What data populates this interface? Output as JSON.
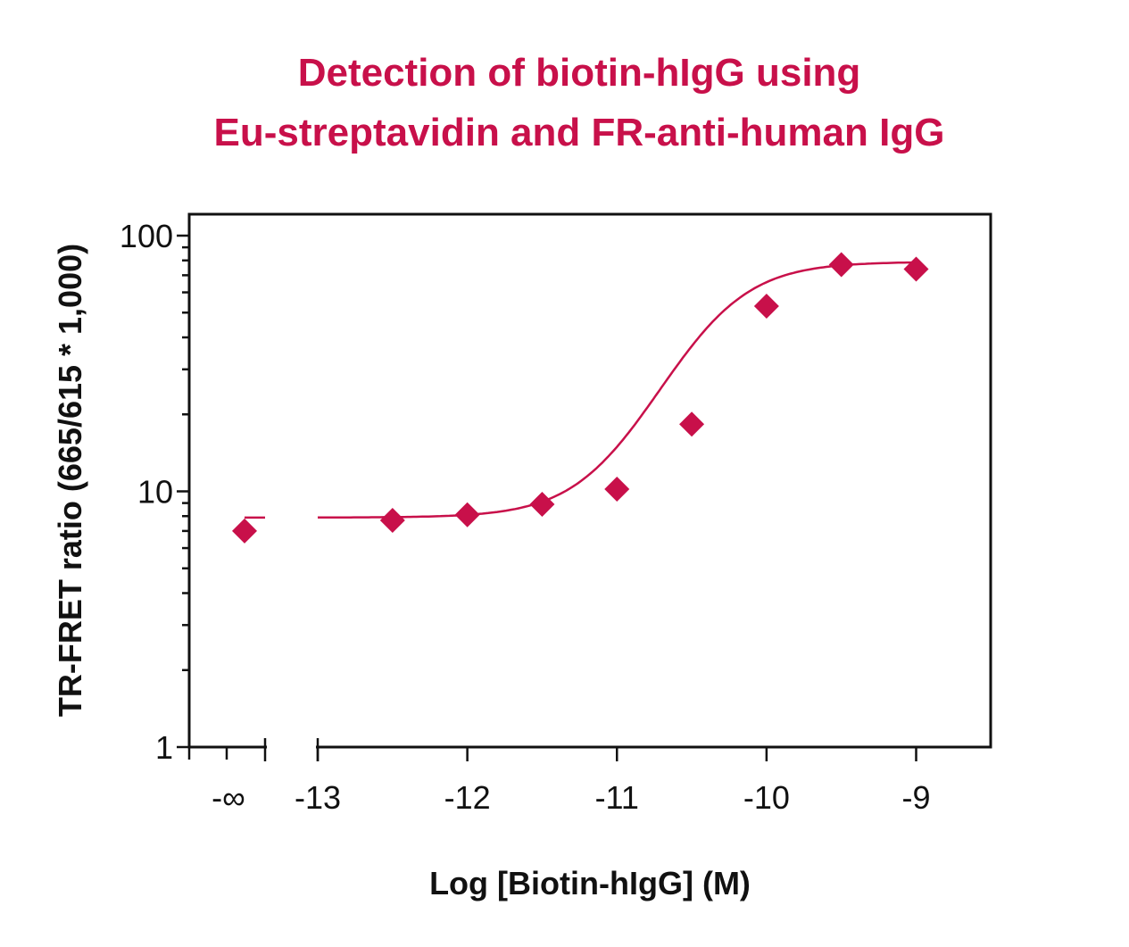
{
  "colors": {
    "accent": "#c8104a",
    "axis": "#111111",
    "background": "#ffffff"
  },
  "chart_data": {
    "type": "scatter",
    "title_lines": [
      "Detection of biotin-hIgG using",
      "Eu-streptavidin and FR-anti-human IgG"
    ],
    "xlabel": "Log [Biotin-hIgG] (M)",
    "ylabel": "TR-FRET ratio (665/615 * 1,000)",
    "y_scale": "log",
    "ylim": [
      1,
      130
    ],
    "xlim": [
      -13,
      -8.5
    ],
    "x_break": true,
    "x_break_label": "-∞",
    "x_tick_labels": [
      "-13",
      "-12",
      "-11",
      "-10",
      "-9"
    ],
    "x_ticks": [
      -13,
      -12,
      -11,
      -10,
      -9
    ],
    "y_tick_labels": [
      "1",
      "10",
      "100"
    ],
    "y_ticks": [
      1,
      10,
      100
    ],
    "grid": false,
    "legend": "none",
    "zero_point": {
      "x_label": "-∞",
      "y": 7
    },
    "series": [
      {
        "marker": "diamond",
        "x": [
          -12.5,
          -12.0,
          -11.5,
          -11.0,
          -10.5,
          -10.0,
          -9.5,
          -9.0
        ],
        "y": [
          7.7,
          8.1,
          8.9,
          10.2,
          18.3,
          53,
          77,
          74
        ]
      }
    ],
    "fit": {
      "model": "4PL",
      "bottom": 7.9,
      "top": 79,
      "log_ec50": -10.4,
      "hill": 1.6,
      "zero_level": 7.9
    }
  }
}
